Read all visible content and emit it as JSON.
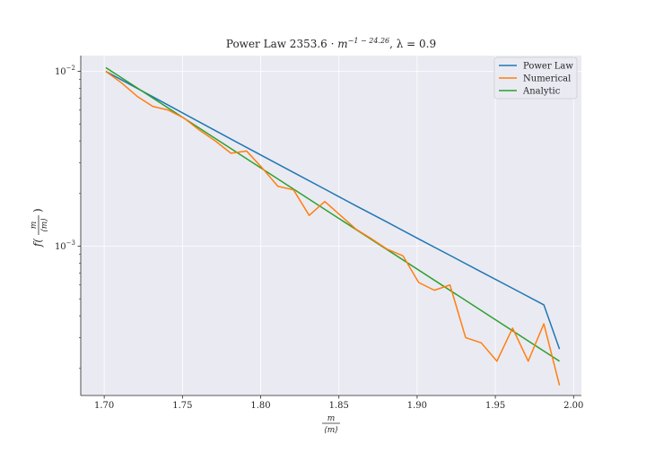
{
  "chart_data": {
    "type": "line",
    "title": {
      "prefix": "Power Law  2353.6 · ",
      "base": "m",
      "exponent": "−1 − 24.26",
      "suffix": ", λ = 0.9"
    },
    "xlabel": {
      "numerator": "m",
      "denominator": "⟨m⟩"
    },
    "ylabel": {
      "prefix": "f(",
      "numerator": "m",
      "denominator": "⟨m⟩",
      "suffix": ")"
    },
    "xlim": [
      1.685,
      2.005
    ],
    "ylim": [
      0.00014,
      0.0123
    ],
    "yscale": "log",
    "xticks": [
      "1.70",
      "1.75",
      "1.80",
      "1.85",
      "1.90",
      "1.95",
      "2.00"
    ],
    "xtick_values": [
      1.7,
      1.75,
      1.8,
      1.85,
      1.9,
      1.95,
      2.0
    ],
    "yticks": [
      {
        "value": 0.01,
        "base": "10",
        "exp": "−2"
      },
      {
        "value": 0.001,
        "base": "10",
        "exp": "−3"
      }
    ],
    "grid": true,
    "legend_position": "top-right",
    "series": [
      {
        "name": "Power Law",
        "color": "#1f77b4",
        "x": [
          1.701,
          1.721,
          1.741,
          1.761,
          1.781,
          1.801,
          1.821,
          1.841,
          1.861,
          1.881,
          1.901,
          1.921,
          1.941,
          1.961,
          1.981,
          1.991
        ],
        "y": [
          0.01,
          0.008,
          0.0064,
          0.00512,
          0.0041,
          0.00329,
          0.00264,
          0.00212,
          0.0017,
          0.00137,
          0.0011,
          0.000886,
          0.000713,
          0.000574,
          0.000462,
          0.000258
        ]
      },
      {
        "name": "Numerical",
        "color": "#ff7f0e",
        "x": [
          1.701,
          1.711,
          1.721,
          1.731,
          1.741,
          1.751,
          1.761,
          1.771,
          1.781,
          1.791,
          1.801,
          1.811,
          1.821,
          1.831,
          1.841,
          1.851,
          1.861,
          1.871,
          1.881,
          1.891,
          1.901,
          1.911,
          1.921,
          1.931,
          1.941,
          1.951,
          1.961,
          1.971,
          1.981,
          1.991
        ],
        "y": [
          0.01,
          0.0086,
          0.0072,
          0.0063,
          0.006,
          0.0054,
          0.0046,
          0.004,
          0.0034,
          0.0035,
          0.0028,
          0.0022,
          0.0021,
          0.0015,
          0.0018,
          0.0015,
          0.00125,
          0.0011,
          0.00096,
          0.00088,
          0.00062,
          0.00056,
          0.0006,
          0.0003,
          0.00028,
          0.00022,
          0.00034,
          0.00022,
          0.00036,
          0.00016
        ]
      },
      {
        "name": "Analytic",
        "color": "#2ca02c",
        "x": [
          1.701,
          1.991
        ],
        "y": [
          0.0105,
          0.00022
        ]
      }
    ]
  }
}
